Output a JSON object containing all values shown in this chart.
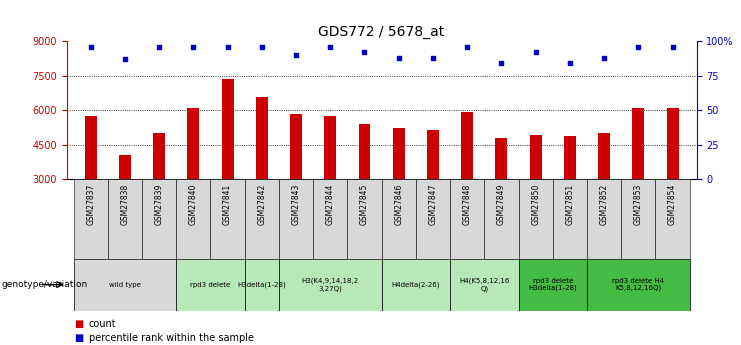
{
  "title": "GDS772 / 5678_at",
  "samples": [
    "GSM27837",
    "GSM27838",
    "GSM27839",
    "GSM27840",
    "GSM27841",
    "GSM27842",
    "GSM27843",
    "GSM27844",
    "GSM27845",
    "GSM27846",
    "GSM27847",
    "GSM27848",
    "GSM27849",
    "GSM27850",
    "GSM27851",
    "GSM27852",
    "GSM27853",
    "GSM27854"
  ],
  "counts": [
    5750,
    4050,
    5000,
    6100,
    7350,
    6600,
    5850,
    5750,
    5400,
    5250,
    5150,
    5950,
    4800,
    4950,
    4900,
    5000,
    6100,
    6100
  ],
  "percentile_ranks": [
    96,
    87,
    96,
    96,
    96,
    96,
    90,
    96,
    92,
    88,
    88,
    96,
    84,
    92,
    84,
    88,
    96,
    96
  ],
  "bar_color": "#cc0000",
  "dot_color": "#0000cc",
  "ymin": 3000,
  "ymax": 9000,
  "yticks": [
    3000,
    4500,
    6000,
    7500,
    9000
  ],
  "right_yticks": [
    0,
    25,
    50,
    75,
    100
  ],
  "right_ytick_labels": [
    "0",
    "25",
    "50",
    "75",
    "100%"
  ],
  "groups": [
    {
      "label": "wild type",
      "start": 0,
      "end": 2,
      "color": "#d8d8d8"
    },
    {
      "label": "rpd3 delete",
      "start": 3,
      "end": 4,
      "color": "#b8e8b8"
    },
    {
      "label": "H3delta(1-28)",
      "start": 5,
      "end": 5,
      "color": "#b8e8b8"
    },
    {
      "label": "H3(K4,9,14,18,2\n3,27Q)",
      "start": 6,
      "end": 8,
      "color": "#b8e8b8"
    },
    {
      "label": "H4delta(2-26)",
      "start": 9,
      "end": 10,
      "color": "#b8e8b8"
    },
    {
      "label": "H4(K5,8,12,16\nQ)",
      "start": 11,
      "end": 12,
      "color": "#b8e8b8"
    },
    {
      "label": "rpd3 delete\nH3delta(1-28)",
      "start": 13,
      "end": 14,
      "color": "#44bb44"
    },
    {
      "label": "rpd3 delete H4\nK5,8,12,16Q)",
      "start": 15,
      "end": 17,
      "color": "#44bb44"
    }
  ],
  "genotype_label": "genotype/variation",
  "legend_count_label": "count",
  "legend_pct_label": "percentile rank within the sample"
}
